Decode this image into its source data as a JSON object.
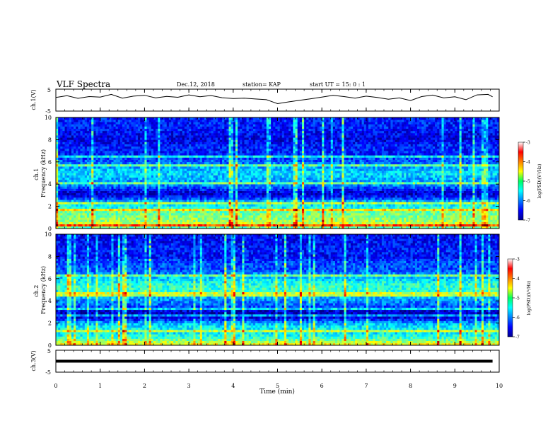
{
  "header": {
    "title": "VLF Spectra",
    "date": "Dec.12, 2018",
    "station": "station= KAP",
    "start": "start  UT =   15: 0  : 1"
  },
  "chart_data": [
    {
      "type": "line",
      "name": "ch1-waveform",
      "ylabel": "ch.1(V)",
      "ylim": [
        -5,
        5
      ],
      "yticks": [
        "5",
        "-5"
      ],
      "xlim": [
        0,
        10
      ],
      "line_color": "#000000",
      "x": [
        0,
        0.25,
        0.5,
        0.75,
        1,
        1.25,
        1.5,
        1.75,
        2,
        2.25,
        2.5,
        2.75,
        3,
        3.25,
        3.5,
        3.75,
        4,
        4.25,
        4.5,
        4.75,
        5,
        5.25,
        5.5,
        5.75,
        6,
        6.25,
        6.5,
        6.75,
        7,
        7.25,
        7.5,
        7.75,
        8,
        8.25,
        8.5,
        8.75,
        9,
        9.25,
        9.5,
        9.75,
        9.85
      ],
      "y": [
        1.2,
        2.0,
        0.8,
        1.6,
        1.4,
        2.6,
        0.9,
        1.8,
        2.2,
        1.0,
        1.7,
        1.3,
        2.4,
        1.5,
        2.1,
        1.1,
        0.7,
        0.9,
        0.5,
        0.2,
        -1.6,
        -0.8,
        -0.1,
        0.6,
        1.4,
        2.2,
        1.6,
        0.9,
        1.8,
        1.2,
        0.4,
        1.0,
        -0.2,
        1.6,
        2.3,
        1.0,
        1.5,
        0.2,
        2.4,
        2.6,
        1.5
      ]
    },
    {
      "type": "heatmap",
      "name": "ch1-spectrogram",
      "ylabel": "ch.1\nFrequency (kHz)",
      "ylim": [
        0,
        10
      ],
      "yticks": [
        "0",
        "2",
        "4",
        "6",
        "8",
        "10"
      ],
      "xlim": [
        0,
        10
      ],
      "colorbar": {
        "label": "log(PSD)(V²/Hz)",
        "range": [
          -7,
          -3
        ],
        "ticks": [
          "-3",
          "-4",
          "-5",
          "-6",
          "-7"
        ]
      },
      "levels": [
        {
          "f": 0.0,
          "v": -5.4
        },
        {
          "f": 0.3,
          "v": -4.6
        },
        {
          "f": 0.7,
          "v": -4.9
        },
        {
          "f": 1.2,
          "v": -5.0
        },
        {
          "f": 1.6,
          "v": -5.1
        },
        {
          "f": 2.0,
          "v": -5.5
        },
        {
          "f": 2.4,
          "v": -5.7
        },
        {
          "f": 2.8,
          "v": -6.4
        },
        {
          "f": 3.2,
          "v": -6.7
        },
        {
          "f": 3.6,
          "v": -6.3
        },
        {
          "f": 4.0,
          "v": -5.9
        },
        {
          "f": 4.5,
          "v": -5.8
        },
        {
          "f": 5.0,
          "v": -5.6
        },
        {
          "f": 5.6,
          "v": -5.9
        },
        {
          "f": 6.2,
          "v": -6.2
        },
        {
          "f": 6.8,
          "v": -6.4
        },
        {
          "f": 7.4,
          "v": -6.4
        },
        {
          "f": 8.0,
          "v": -6.6
        },
        {
          "f": 8.6,
          "v": -6.5
        },
        {
          "f": 9.2,
          "v": -6.4
        },
        {
          "f": 10.0,
          "v": -6.4
        }
      ]
    },
    {
      "type": "heatmap",
      "name": "ch2-spectrogram",
      "ylabel": "ch.2\nFrequency (kHz)",
      "ylim": [
        0,
        10
      ],
      "yticks": [
        "0",
        "2",
        "4",
        "6",
        "8",
        "10"
      ],
      "xlim": [
        0,
        10
      ],
      "colorbar": {
        "label": "log(PSD)(V²/Hz)",
        "range": [
          -7,
          -3
        ],
        "ticks": [
          "-3",
          "-4",
          "-5",
          "-6",
          "-7"
        ]
      },
      "levels": [
        {
          "f": 0.0,
          "v": -4.4
        },
        {
          "f": 0.3,
          "v": -4.8
        },
        {
          "f": 0.7,
          "v": -5.3
        },
        {
          "f": 1.2,
          "v": -5.6
        },
        {
          "f": 1.6,
          "v": -5.5
        },
        {
          "f": 2.0,
          "v": -5.8
        },
        {
          "f": 2.4,
          "v": -6.5
        },
        {
          "f": 2.8,
          "v": -6.8
        },
        {
          "f": 3.2,
          "v": -6.6
        },
        {
          "f": 3.6,
          "v": -6.1
        },
        {
          "f": 4.0,
          "v": -6.0
        },
        {
          "f": 4.5,
          "v": -5.6
        },
        {
          "f": 5.0,
          "v": -5.3
        },
        {
          "f": 5.6,
          "v": -5.4
        },
        {
          "f": 6.2,
          "v": -5.8
        },
        {
          "f": 6.8,
          "v": -6.2
        },
        {
          "f": 7.4,
          "v": -6.2
        },
        {
          "f": 8.0,
          "v": -6.5
        },
        {
          "f": 8.6,
          "v": -6.4
        },
        {
          "f": 9.2,
          "v": -6.5
        },
        {
          "f": 10.0,
          "v": -6.5
        }
      ]
    },
    {
      "type": "line",
      "name": "ch3-waveform",
      "ylabel": "ch.3(V)",
      "ylim": [
        -5,
        5
      ],
      "yticks": [
        "5",
        "-5"
      ],
      "xlim": [
        0,
        10
      ],
      "line_color": "#000000",
      "x": [
        0,
        9.85
      ],
      "y": [
        0,
        0
      ]
    }
  ],
  "xaxis": {
    "label": "Time (min)",
    "ticks": [
      "0",
      "1",
      "2",
      "3",
      "4",
      "5",
      "6",
      "7",
      "8",
      "9",
      "10"
    ]
  }
}
